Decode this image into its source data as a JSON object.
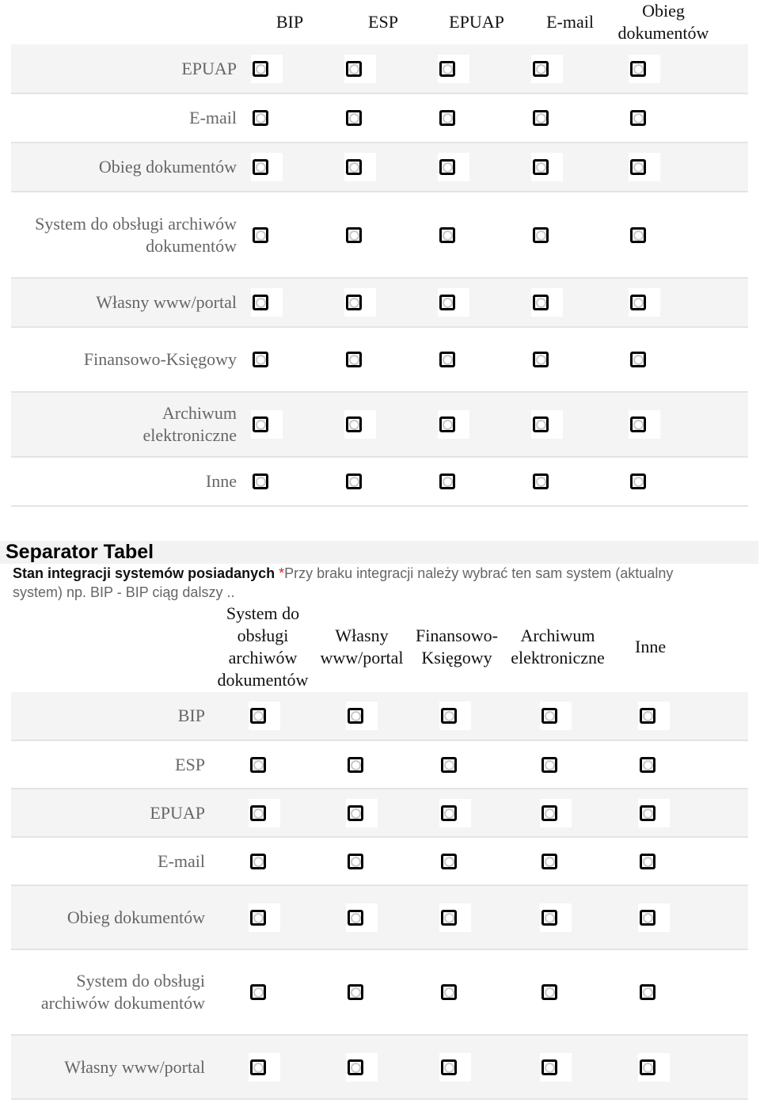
{
  "table1": {
    "columns": [
      "BIP",
      "ESP",
      "EPUAP",
      "E-mail",
      "Obieg dokumentów"
    ],
    "rows": [
      "EPUAP",
      "E-mail",
      "Obieg dokumentów",
      "System do obsługi archiwów dokumentów",
      "Własny www/portal",
      "Finansowo-Księgowy",
      "Archiwum elektroniczne",
      "Inne"
    ]
  },
  "separator": {
    "title": "Separator Tabel",
    "label": "Stan integracji systemów posiadanych",
    "required_mark": "*",
    "note": "Przy braku integracji należy wybrać ten sam system (aktualny system) np. BIP - BIP ciąg dalszy .."
  },
  "table2": {
    "columns": [
      "System do obsługi archiwów dokumentów",
      "Własny www/portal",
      "Finansowo-Księgowy",
      "Archiwum elektroniczne",
      "Inne"
    ],
    "rows": [
      "BIP",
      "ESP",
      "EPUAP",
      "E-mail",
      "Obieg dokumentów",
      "System do obsługi archiwów dokumentów",
      "Własny www/portal"
    ]
  }
}
